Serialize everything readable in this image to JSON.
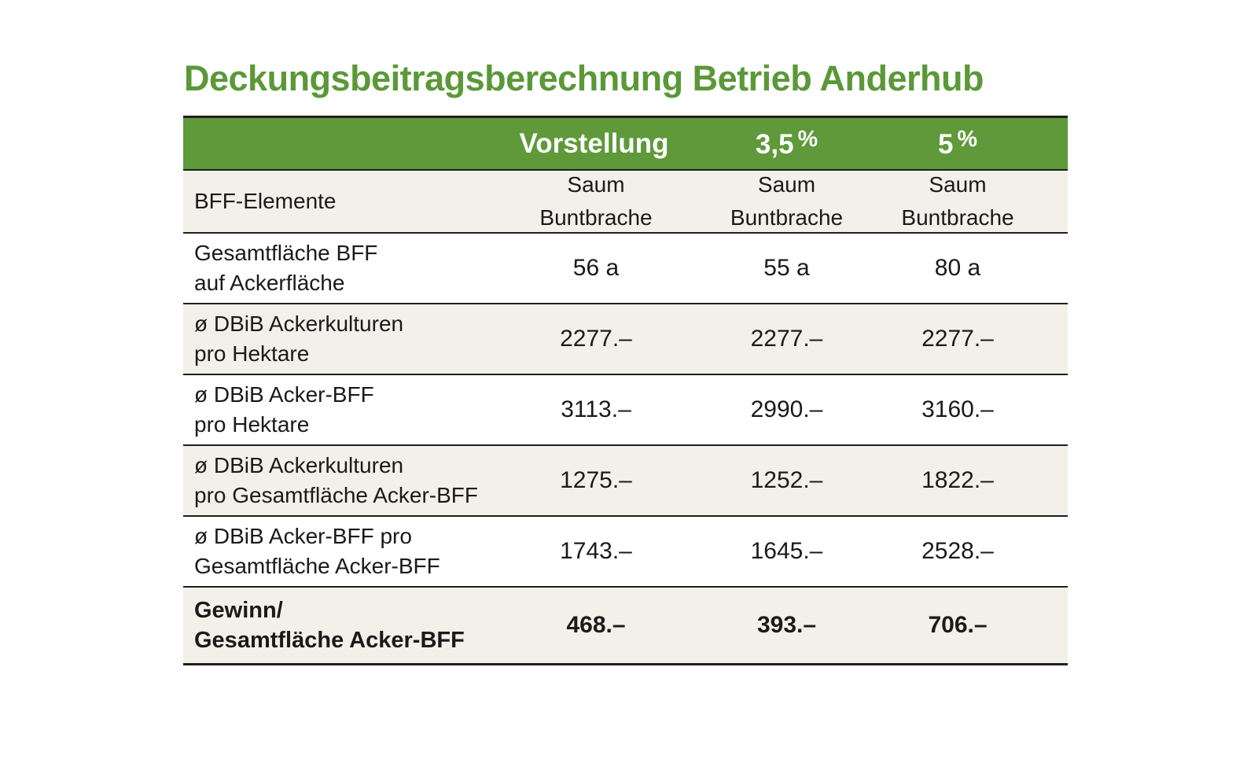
{
  "title": "Deckungsbeitragsberechnung Betrieb Anderhub",
  "colors": {
    "title_green": "#5b9838",
    "header_green": "#5f993a",
    "stripe_beige": "#f2f0e9",
    "rule_line": "#1f1f1f",
    "header_text": "#ffffff",
    "body_text": "#1a1a1a"
  },
  "chart_data": {
    "type": "table",
    "title": "Deckungsbeitragsberechnung Betrieb Anderhub",
    "header": {
      "cols": [
        {
          "label": "Vorstellung",
          "sup": ""
        },
        {
          "label": "3,5",
          "sup": "%"
        },
        {
          "label": "5",
          "sup": "%"
        }
      ]
    },
    "subheader": {
      "label": "BFF-Elemente",
      "cols": [
        {
          "line1": "Saum",
          "line2": "Buntbrache"
        },
        {
          "line1": "Saum",
          "line2": "Buntbrache"
        },
        {
          "line1": "Saum",
          "line2": "Buntbrache"
        }
      ]
    },
    "rows": [
      {
        "label1": "Gesamtfläche BFF",
        "label2": "auf Ackerfläche",
        "v1": "56 a",
        "v2": "55 a",
        "v3": "80 a"
      },
      {
        "label1": "ø DBiB Ackerkulturen",
        "label2": "pro Hektare",
        "v1": "2277.–",
        "v2": "2277.–",
        "v3": "2277.–"
      },
      {
        "label1": "ø DBiB Acker-BFF",
        "label2": "pro Hektare",
        "v1": "3113.–",
        "v2": "2990.–",
        "v3": "3160.–"
      },
      {
        "label1": "ø DBiB Ackerkulturen",
        "label2": "pro Gesamtfläche Acker-BFF",
        "v1": "1275.–",
        "v2": "1252.–",
        "v3": "1822.–"
      },
      {
        "label1": "ø DBiB Acker-BFF pro",
        "label2": "Gesamtfläche Acker-BFF",
        "v1": "1743.–",
        "v2": "1645.–",
        "v3": "2528.–"
      },
      {
        "label1": "Gewinn/",
        "label2": "Gesamtfläche Acker-BFF",
        "v1": "468.–",
        "v2": "393.–",
        "v3": "706.–"
      }
    ]
  }
}
